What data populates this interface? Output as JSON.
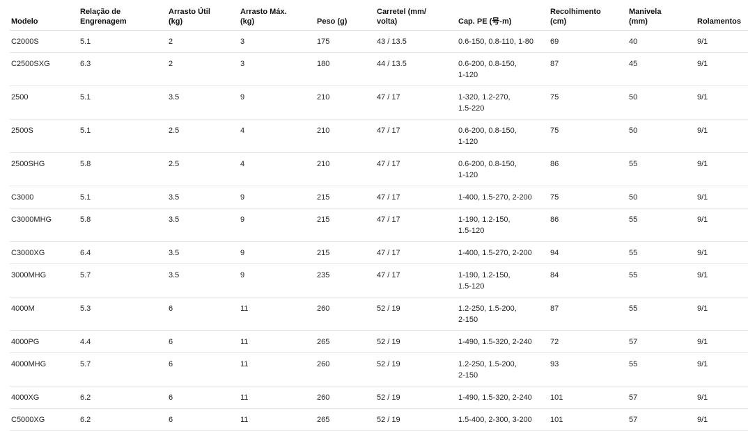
{
  "chart_data": {
    "type": "table",
    "columns": [
      {
        "id": "modelo",
        "label": "Modelo"
      },
      {
        "id": "relacao-engrenagem",
        "label": "Relação de\nEngrenagem"
      },
      {
        "id": "arrasto-util",
        "label": "Arrasto Útil\n(kg)"
      },
      {
        "id": "arrasto-max",
        "label": "Arrasto Máx.\n(kg)"
      },
      {
        "id": "peso",
        "label": "Peso (g)"
      },
      {
        "id": "carretel",
        "label": "Carretel (mm/\nvolta)"
      },
      {
        "id": "cap-pe",
        "label": "Cap. PE (号-m)"
      },
      {
        "id": "recolhimento",
        "label": "Recolhimento\n(cm)"
      },
      {
        "id": "manivela",
        "label": "Manivela\n(mm)"
      },
      {
        "id": "rolamentos",
        "label": "Rolamentos"
      }
    ],
    "rows": [
      [
        "C2000S",
        "5.1",
        "2",
        "3",
        "175",
        "43 / 13.5",
        "0.6-150, 0.8-110, 1-80",
        "69",
        "40",
        "9/1"
      ],
      [
        "C2500SXG",
        "6.3",
        "2",
        "3",
        "180",
        "44 / 13.5",
        "0.6-200, 0.8-150,\n1-120",
        "87",
        "45",
        "9/1"
      ],
      [
        "2500",
        "5.1",
        "3.5",
        "9",
        "210",
        "47 / 17",
        "1-320, 1.2-270,\n1.5-220",
        "75",
        "50",
        "9/1"
      ],
      [
        "2500S",
        "5.1",
        "2.5",
        "4",
        "210",
        "47 / 17",
        "0.6-200, 0.8-150,\n1-120",
        "75",
        "50",
        "9/1"
      ],
      [
        "2500SHG",
        "5.8",
        "2.5",
        "4",
        "210",
        "47 / 17",
        "0.6-200, 0.8-150,\n1-120",
        "86",
        "55",
        "9/1"
      ],
      [
        "C3000",
        "5.1",
        "3.5",
        "9",
        "215",
        "47 / 17",
        "1-400, 1.5-270, 2-200",
        "75",
        "50",
        "9/1"
      ],
      [
        "C3000MHG",
        "5.8",
        "3.5",
        "9",
        "215",
        "47 / 17",
        "1-190, 1.2-150,\n1.5-120",
        "86",
        "55",
        "9/1"
      ],
      [
        "C3000XG",
        "6.4",
        "3.5",
        "9",
        "215",
        "47 / 17",
        "1-400, 1.5-270, 2-200",
        "94",
        "55",
        "9/1"
      ],
      [
        "3000MHG",
        "5.7",
        "3.5",
        "9",
        "235",
        "47 / 17",
        "1-190, 1.2-150,\n1.5-120",
        "84",
        "55",
        "9/1"
      ],
      [
        "4000M",
        "5.3",
        "6",
        "11",
        "260",
        "52 / 19",
        "1.2-250, 1.5-200,\n2-150",
        "87",
        "55",
        "9/1"
      ],
      [
        "4000PG",
        "4.4",
        "6",
        "11",
        "265",
        "52 / 19",
        "1-490, 1.5-320, 2-240",
        "72",
        "57",
        "9/1"
      ],
      [
        "4000MHG",
        "5.7",
        "6",
        "11",
        "260",
        "52 / 19",
        "1.2-250, 1.5-200,\n2-150",
        "93",
        "55",
        "9/1"
      ],
      [
        "4000XG",
        "6.2",
        "6",
        "11",
        "260",
        "52 / 19",
        "1-490, 1.5-320, 2-240",
        "101",
        "57",
        "9/1"
      ],
      [
        "C5000XG",
        "6.2",
        "6",
        "11",
        "265",
        "52 / 19",
        "1.5-400, 2-300, 3-200",
        "101",
        "57",
        "9/1"
      ]
    ],
    "layout": {
      "grid": "horizontal-row-dividers-only",
      "legend": "none",
      "header_style": "bold"
    }
  },
  "colors": {
    "background": "#ffffff",
    "header_text": "#111111",
    "body_text": "#1f1f1f",
    "header_divider": "#d6d6d6",
    "row_divider": "#e7e7e7"
  }
}
